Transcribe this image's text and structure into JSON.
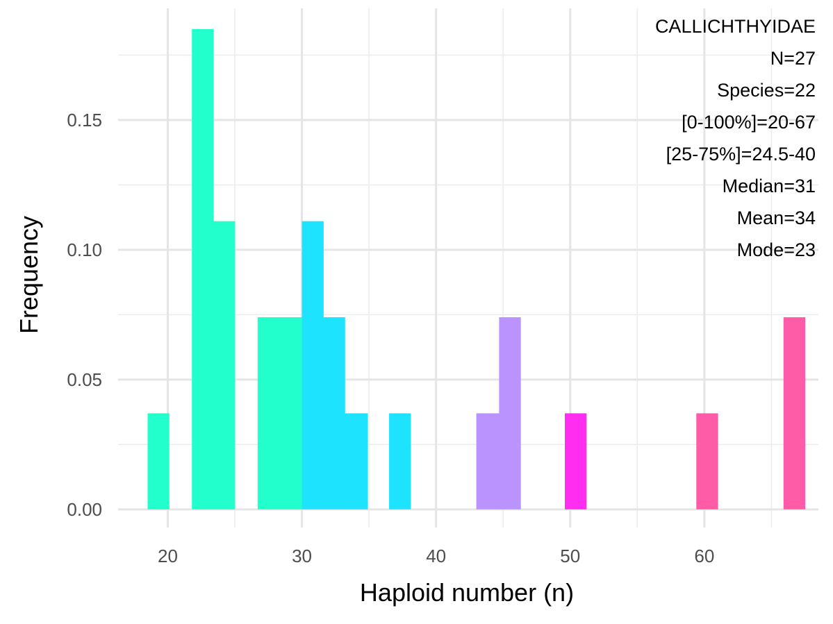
{
  "chart_data": {
    "type": "bar",
    "subtype": "histogram",
    "xlabel": "Haploid number (n)",
    "ylabel": "Frequency",
    "xlim": [
      16.3,
      68.5
    ],
    "ylim": [
      -0.007,
      0.193
    ],
    "x_ticks": [
      20,
      30,
      40,
      50,
      60
    ],
    "x_tick_labels": [
      "20",
      "30",
      "40",
      "50",
      "60"
    ],
    "y_ticks": [
      0,
      0.05,
      0.1,
      0.15
    ],
    "y_tick_labels": [
      "0.00",
      "0.05",
      "0.10",
      "0.15"
    ],
    "x_minor_ticks": [
      25,
      35,
      45,
      55,
      65
    ],
    "y_minor_ticks": [
      0.025,
      0.075,
      0.125,
      0.175
    ],
    "grid": true,
    "bin_width": 1.63,
    "bars": [
      {
        "x0": 18.5,
        "x1": 20.1,
        "value": 0.037,
        "color": "#22ffcc"
      },
      {
        "x0": 21.8,
        "x1": 23.4,
        "value": 0.185,
        "color": "#22ffcc"
      },
      {
        "x0": 23.4,
        "x1": 25.0,
        "value": 0.111,
        "color": "#22ffcc"
      },
      {
        "x0": 26.7,
        "x1": 28.3,
        "value": 0.074,
        "color": "#22ffcc"
      },
      {
        "x0": 28.3,
        "x1": 30.0,
        "value": 0.074,
        "color": "#22ffcc"
      },
      {
        "x0": 30.0,
        "x1": 31.6,
        "value": 0.111,
        "color": "#1ee3ff"
      },
      {
        "x0": 31.6,
        "x1": 33.2,
        "value": 0.074,
        "color": "#1ee3ff"
      },
      {
        "x0": 33.2,
        "x1": 34.9,
        "value": 0.037,
        "color": "#1ee3ff"
      },
      {
        "x0": 36.5,
        "x1": 38.1,
        "value": 0.037,
        "color": "#1ee3ff"
      },
      {
        "x0": 43.0,
        "x1": 44.7,
        "value": 0.037,
        "color": "#bb93ff"
      },
      {
        "x0": 44.7,
        "x1": 46.3,
        "value": 0.074,
        "color": "#bb93ff"
      },
      {
        "x0": 49.6,
        "x1": 51.2,
        "value": 0.037,
        "color": "#ff2df0"
      },
      {
        "x0": 59.4,
        "x1": 61.0,
        "value": 0.037,
        "color": "#ff5ca8"
      },
      {
        "x0": 65.9,
        "x1": 67.5,
        "value": 0.074,
        "color": "#ff5ca8"
      }
    ],
    "annotations": [
      "CALLICHTHYIDAE",
      "N=27",
      "Species=22",
      "[0-100%]=20-67",
      "[25-75%]=24.5-40",
      "Median=31",
      "Mean=34",
      "Mode=23"
    ]
  }
}
